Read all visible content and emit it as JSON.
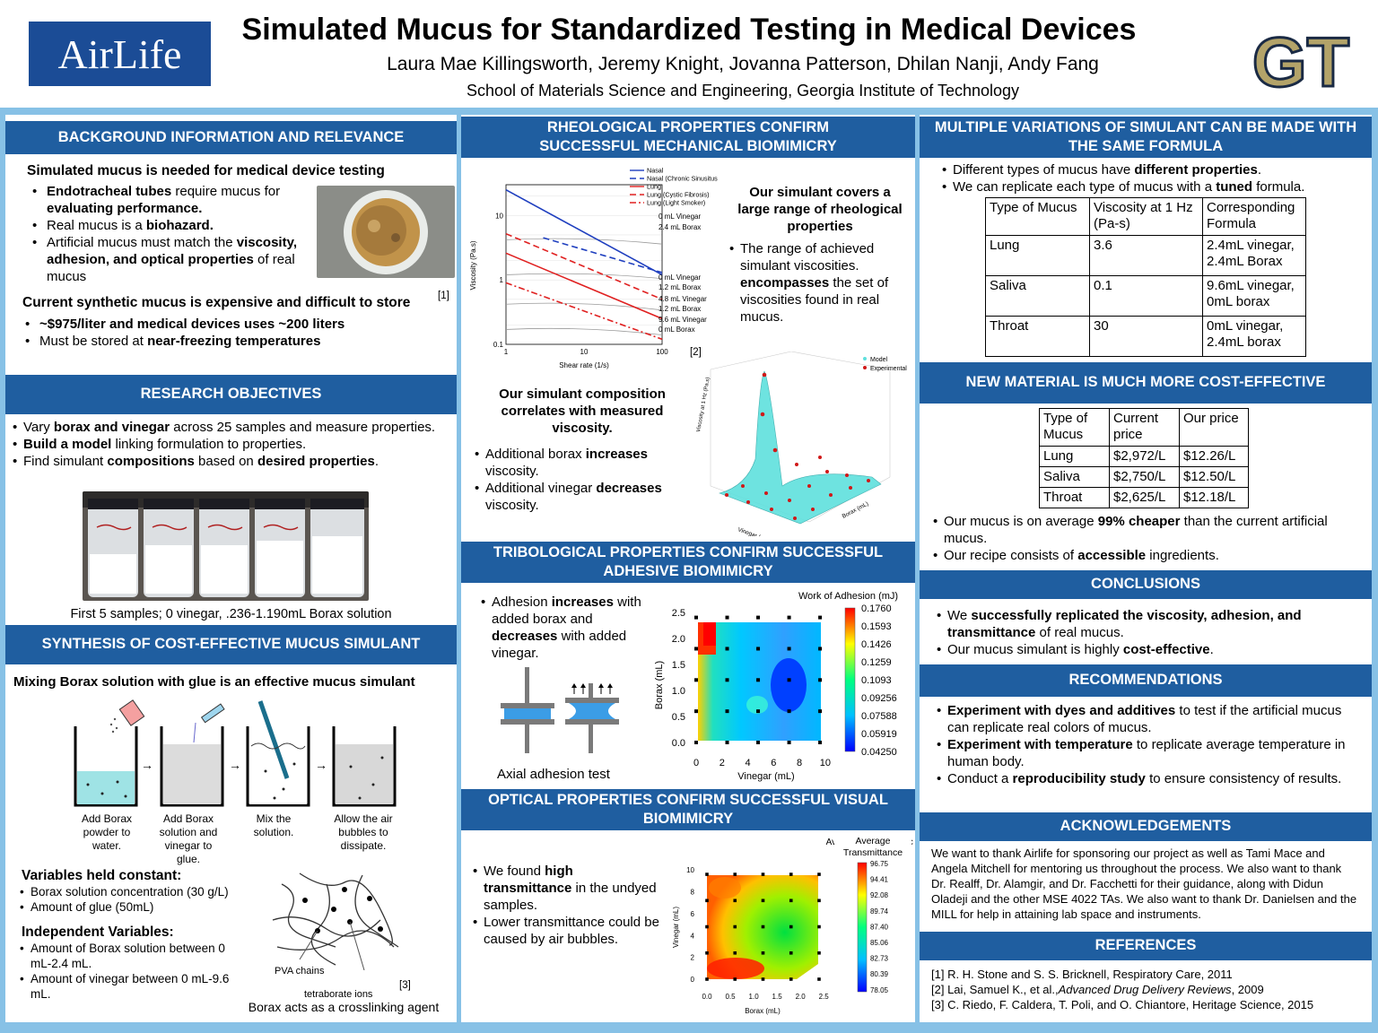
{
  "header": {
    "title": "Simulated Mucus for Standardized Testing in Medical Devices",
    "authors": "Laura Mae Killingsworth, Jeremy Knight, Jovanna Patterson, Dhilan Nanji, Andy Fang",
    "affiliation": "School of Materials Science and Engineering, Georgia Institute of Technology",
    "sponsor_logo": "AirLife",
    "gt_logo": "GT"
  },
  "background": {
    "heading": "BACKGROUND INFORMATION AND RELEVANCE",
    "lead": "Simulated mucus is needed for medical device testing",
    "b1_strong": "Endotracheal tubes",
    "b1_rest": " require mucus for ",
    "b1_strong2": "evaluating performance.",
    "b2_rest": "Real mucus is a ",
    "b2_strong": "biohazard.",
    "b3_rest": "Artificial mucus must match the ",
    "b3_strong": "viscosity, adhesion, and optical properties",
    "b3_end": " of real mucus",
    "ref1": "[1]",
    "lead2": "Current synthetic mucus is expensive and difficult to store",
    "c1": "~$975/liter and medical devices uses ~200 liters",
    "c2_rest": "Must be stored at ",
    "c2_strong": "near-freezing temperatures"
  },
  "objectives": {
    "heading": "RESEARCH OBJECTIVES",
    "o1_a": "Vary ",
    "o1_s": "borax and vinegar",
    "o1_b": " across 25 samples and measure properties.",
    "o2_s": "Build a model",
    "o2_b": " linking formulation to properties.",
    "o3_a": "Find simulant ",
    "o3_s": "compositions",
    "o3_b": " based on ",
    "o3_s2": "desired properties",
    "o3_c": ".",
    "caption": "First 5 samples; 0 vinegar, .236-1.190mL Borax solution"
  },
  "synthesis": {
    "heading": "SYNTHESIS OF COST-EFFECTIVE MUCUS SIMULANT",
    "lead": "Mixing Borax solution with glue is an effective mucus simulant",
    "steps": [
      "Add Borax powder to water.",
      "Add Borax solution and vinegar to glue.",
      "Mix the solution.",
      "Allow the air bubbles to dissipate."
    ],
    "const_head": "Variables held constant:",
    "const": [
      "Borax solution concentration  (30 g/L)",
      "Amount of glue (50mL)"
    ],
    "ind_head": "Independent Variables:",
    "ind": [
      "Amount of Borax solution between 0 mL-2.4 mL.",
      "Amount of vinegar between 0 mL-9.6 mL."
    ],
    "pva": "PVA chains",
    "tetra": "tetraborate ions",
    "ref3": "[3]",
    "caption": "Borax acts as a crosslinking agent"
  },
  "rheology": {
    "heading": "RHEOLOGICAL PROPERTIES  CONFIRM SUCCESSFUL  MECHANICAL BIOMIMICRY",
    "side_head": "Our simulant covers a large range of rheological properties",
    "side_a": "The range of achieved simulant viscosities. ",
    "side_s": "encompasses",
    "side_b": " the set of viscosities found in real mucus.",
    "ref2": "[2]",
    "comp_head": "Our simulant composition correlates with measured viscosity.",
    "p1_a": "Additional borax ",
    "p1_s": "increases",
    "p1_b": " viscosity.",
    "p2_a": "Additional vinegar ",
    "p2_s": "decreases",
    "p2_b": " viscosity."
  },
  "tribology": {
    "heading": "TRIBOLOGICAL PROPERTIES CONFIRM SUCCESSFUL ADHESIVE BIOMIMICRY",
    "t_a": "Adhesion ",
    "t_s": "increases",
    "t_b": " with added borax and ",
    "t_s2": "decreases",
    "t_c": " with added vinegar.",
    "caption": "Axial adhesion test"
  },
  "optical": {
    "heading": "OPTICAL PROPERTIES CONFIRM SUCCESSFUL VISUAL BIOMIMICRY",
    "o1_a": "We found ",
    "o1_s": "high transmittance",
    "o1_b": " in the undyed samples.",
    "o2": "Lower transmittance could be caused by air bubbles."
  },
  "variations": {
    "heading": "MULTIPLE VARIATIONS OF SIMULANT CAN BE MADE WITH THE SAME FORMULA",
    "v1_a": "Different types of mucus have ",
    "v1_s": "different properties",
    "v1_b": ".",
    "v2_a": "We can replicate each type of mucus with a ",
    "v2_s": "tuned",
    "v2_b": " formula.",
    "table": [
      [
        "Type of Mucus",
        "Viscosity at 1 Hz (Pa-s)",
        "Corresponding Formula"
      ],
      [
        "Lung",
        "3.6",
        "2.4mL vinegar, 2.4mL Borax"
      ],
      [
        "Saliva",
        "0.1",
        "9.6mL vinegar, 0mL borax"
      ],
      [
        "Throat",
        "30",
        "0mL vinegar, 2.4mL borax"
      ]
    ]
  },
  "cost": {
    "heading": "NEW MATERIAL IS MUCH MORE COST-EFFECTIVE",
    "table": [
      [
        "Type of Mucus",
        "Current price",
        "Our price"
      ],
      [
        "Lung",
        "$2,972/L",
        "$12.26/L"
      ],
      [
        "Saliva",
        "$2,750/L",
        "$12.50/L"
      ],
      [
        "Throat",
        "$2,625/L",
        "$12.18/L"
      ]
    ],
    "c1_a": "Our mucus is on average ",
    "c1_s": "99% cheaper",
    "c1_b": " than the current artificial mucus.",
    "c2_a": "Our recipe consists of ",
    "c2_s": "accessible",
    "c2_b": " ingredients."
  },
  "conclusions": {
    "heading": "CONCLUSIONS",
    "c1_a": "We ",
    "c1_s": "successfully replicated the viscosity, adhesion, and transmittance",
    "c1_b": " of real mucus.",
    "c2_a": "Our mucus simulant is highly ",
    "c2_s": "cost-effective",
    "c2_b": "."
  },
  "recommendations": {
    "heading": "RECOMMENDATIONS",
    "r1_s": "Experiment with dyes and additives",
    "r1_b": " to test if the artificial mucus can replicate real colors of mucus.",
    "r2_s": "Experiment with temperature",
    "r2_b": " to replicate average temperature in human body.",
    "r3_a": "Conduct a ",
    "r3_s": "reproducibility study",
    "r3_b": " to ensure consistency of results."
  },
  "acknowledgements": {
    "heading": "ACKNOWLEDGEMENTS",
    "text": "We want to thank Airlife for sponsoring our project as well as Tami Mace and Angela Mitchell for mentoring us throughout the process. We also want to thank Dr. Realff, Dr. Alamgir, and Dr. Facchetti for their guidance, along with Didun Oladeji and the other MSE 4022 TAs. We also want to thank Dr. Danielsen and the MILL for help in attaining lab space and instruments."
  },
  "references": {
    "heading": "REFERENCES",
    "r1": "[1] R. H. Stone and S. S. Bricknell, Respiratory Care, 2011",
    "r2_a": "[2] Lai, Samuel K., et al.,",
    "r2_i": "Advanced Drug Delivery Reviews",
    "r2_b": ", 2009",
    "r3": "[3] C. Riedo, F. Caldera, T. Poli, and O. Chiantore, Heritage Science, 2015"
  },
  "chart_data": [
    {
      "type": "line",
      "xlabel": "Shear rate (1/s)",
      "ylabel": "Viscosity (Pa.s)",
      "log_x": true,
      "log_y": true,
      "xlim": [
        1,
        100
      ],
      "ylim": [
        0.1,
        30
      ],
      "x_ticks": [
        "1",
        "10",
        "100"
      ],
      "y_ticks": [
        "0.1",
        "1",
        "10"
      ],
      "legend_position": "top",
      "series": [
        {
          "name": "Nasal",
          "style": "solid",
          "color": "#1f3fbf",
          "x": [
            1,
            100
          ],
          "y": [
            25,
            1.2
          ]
        },
        {
          "name": "Nasal (Chronic Sinusitus)",
          "style": "dashed",
          "color": "#1f3fbf",
          "x": [
            3,
            100
          ],
          "y": [
            4.5,
            1.3
          ]
        },
        {
          "name": "Lung",
          "style": "solid",
          "color": "#e02020",
          "x": [
            1,
            100
          ],
          "y": [
            2.6,
            0.25
          ]
        },
        {
          "name": "Lung (Cystic Fibrosis)",
          "style": "dashed",
          "color": "#e02020",
          "x": [
            1,
            100
          ],
          "y": [
            5.2,
            0.5
          ]
        },
        {
          "name": "Lung (Light Smoker)",
          "style": "dashdot",
          "color": "#e02020",
          "x": [
            1,
            100
          ],
          "y": [
            0.9,
            0.12
          ]
        }
      ],
      "annotations": [
        "0 mL Vinegar",
        "2.4 mL Borax",
        "0 mL Vinegar",
        "1.2 mL Borax",
        "4.8 mL Vinegar",
        "1.2 mL Borax",
        "9.6 mL Vinegar",
        "0 mL Borax"
      ]
    },
    {
      "type": "scatter",
      "subtype": "3d-surface",
      "xlabel": "Vinegar (mL)",
      "ylabel": "Borax (mL)",
      "zlabel": "Viscosity at 1 Hz (Pa.s)",
      "legend": [
        "Model",
        "Experimental"
      ],
      "legend_position": "top-right"
    },
    {
      "type": "heatmap",
      "title": "Work of Adhesion (mJ)",
      "xlabel": "Vinegar (mL)",
      "ylabel": "Borax (mL)",
      "x_ticks": [
        "0",
        "2",
        "4",
        "6",
        "8",
        "10"
      ],
      "y_ticks": [
        "0.0",
        "0.5",
        "1.0",
        "1.5",
        "2.0",
        "2.5"
      ],
      "xlim": [
        0,
        10
      ],
      "ylim": [
        0,
        2.5
      ],
      "colorbar": [
        "0.1760",
        "0.1593",
        "0.1426",
        "0.1259",
        "0.1093",
        "0.09256",
        "0.07588",
        "0.05919",
        "0.04250"
      ],
      "vinegar": [
        0,
        2.4,
        4.8,
        7.2,
        9.6
      ],
      "borax": [
        0,
        0.6,
        1.2,
        1.8,
        2.4
      ]
    },
    {
      "type": "heatmap",
      "title": "Average Transmittance",
      "xlabel": "Borax (mL)",
      "ylabel": "Vinegar (mL)",
      "x_ticks": [
        "0.0",
        "0.5",
        "1.0",
        "1.5",
        "2.0",
        "2.5"
      ],
      "y_ticks": [
        "0",
        "2",
        "4",
        "6",
        "8",
        "10"
      ],
      "xlim": [
        0,
        2.5
      ],
      "ylim": [
        0,
        10
      ],
      "colorbar": [
        "96.75",
        "94.41",
        "92.08",
        "89.74",
        "87.40",
        "85.06",
        "82.73",
        "80.39",
        "78.05"
      ]
    }
  ],
  "colors": {
    "heading_bar": "#1f5ea0",
    "frame": "#87c1e6",
    "airlife": "#1b4c96",
    "gt_gold": "#b3a369"
  }
}
